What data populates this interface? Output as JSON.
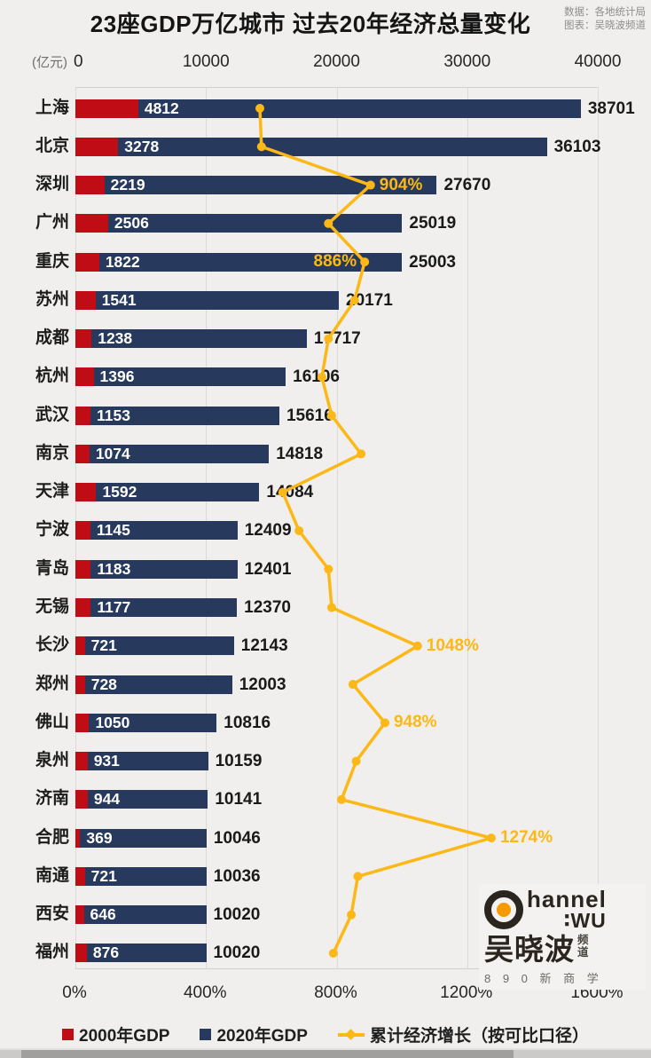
{
  "title": "23座GDP万亿城市 过去20年经济总量变化",
  "source": {
    "line1": "数据：各地统计局",
    "line2": "图表：吴晓波频道"
  },
  "value_axis": {
    "unit_label": "(亿元)",
    "zero_label": "0",
    "ticks": [
      "10000",
      "20000",
      "30000",
      "40000"
    ],
    "position": "top"
  },
  "percent_axis": {
    "ticks": [
      "0%",
      "400%",
      "800%",
      "1200%",
      "1600%"
    ],
    "position": "bottom"
  },
  "legend": [
    {
      "label": "2000年GDP",
      "marker": "square",
      "color": "#c00d15"
    },
    {
      "label": "2020年GDP",
      "marker": "square",
      "color": "#273a5e"
    },
    {
      "label": "累计经济增长（按可比口径）",
      "marker": "line-diamond",
      "color": "#fcb817"
    }
  ],
  "colors": {
    "gdp2000": "#c00d15",
    "gdp2020": "#273a5e",
    "growth_line": "#fcb817",
    "background": "#f0efed"
  },
  "logo": {
    "channel": "hannel",
    "wu": "∶WU",
    "name": "吴晓波",
    "suffix1": "频",
    "suffix2": "道",
    "sub": "8 9 0 新 商 学"
  },
  "chart_data": {
    "type": "bar",
    "orientation": "horizontal",
    "title": "23座GDP万亿城市 过去20年经济总量变化",
    "categories": [
      "上海",
      "北京",
      "深圳",
      "广州",
      "重庆",
      "苏州",
      "成都",
      "杭州",
      "武汉",
      "南京",
      "天津",
      "宁波",
      "青岛",
      "无锡",
      "长沙",
      "郑州",
      "佛山",
      "泉州",
      "济南",
      "合肥",
      "南通",
      "西安",
      "福州"
    ],
    "series": [
      {
        "name": "2000年GDP",
        "type": "bar",
        "unit": "亿元",
        "values": [
          4812,
          3278,
          2219,
          2506,
          1822,
          1541,
          1238,
          1396,
          1153,
          1074,
          1592,
          1145,
          1183,
          1177,
          721,
          728,
          1050,
          931,
          944,
          369,
          721,
          646,
          876
        ]
      },
      {
        "name": "2020年GDP",
        "type": "bar",
        "unit": "亿元",
        "values": [
          38701,
          36103,
          27670,
          25019,
          25003,
          20171,
          17717,
          16106,
          15616,
          14818,
          14084,
          12409,
          12401,
          12370,
          12143,
          12003,
          10816,
          10159,
          10141,
          10046,
          10036,
          10020,
          10020
        ]
      },
      {
        "name": "累计经济增长（按可比口径）",
        "type": "line",
        "unit": "%",
        "values": [
          565,
          570,
          904,
          775,
          886,
          855,
          775,
          755,
          785,
          875,
          635,
          685,
          775,
          785,
          1048,
          850,
          948,
          860,
          815,
          1274,
          865,
          845,
          790
        ]
      }
    ],
    "labeled_growth_points": [
      {
        "city": "深圳",
        "text": "904%",
        "side": "right"
      },
      {
        "city": "重庆",
        "text": "886%",
        "side": "left"
      },
      {
        "city": "长沙",
        "text": "1048%",
        "side": "right"
      },
      {
        "city": "佛山",
        "text": "948%",
        "side": "right"
      },
      {
        "city": "合肥",
        "text": "1274%",
        "side": "right"
      }
    ],
    "value_axis_range": [
      0,
      40000
    ],
    "percent_axis_range": [
      0,
      1600
    ],
    "grid": true,
    "legend_position": "bottom"
  }
}
